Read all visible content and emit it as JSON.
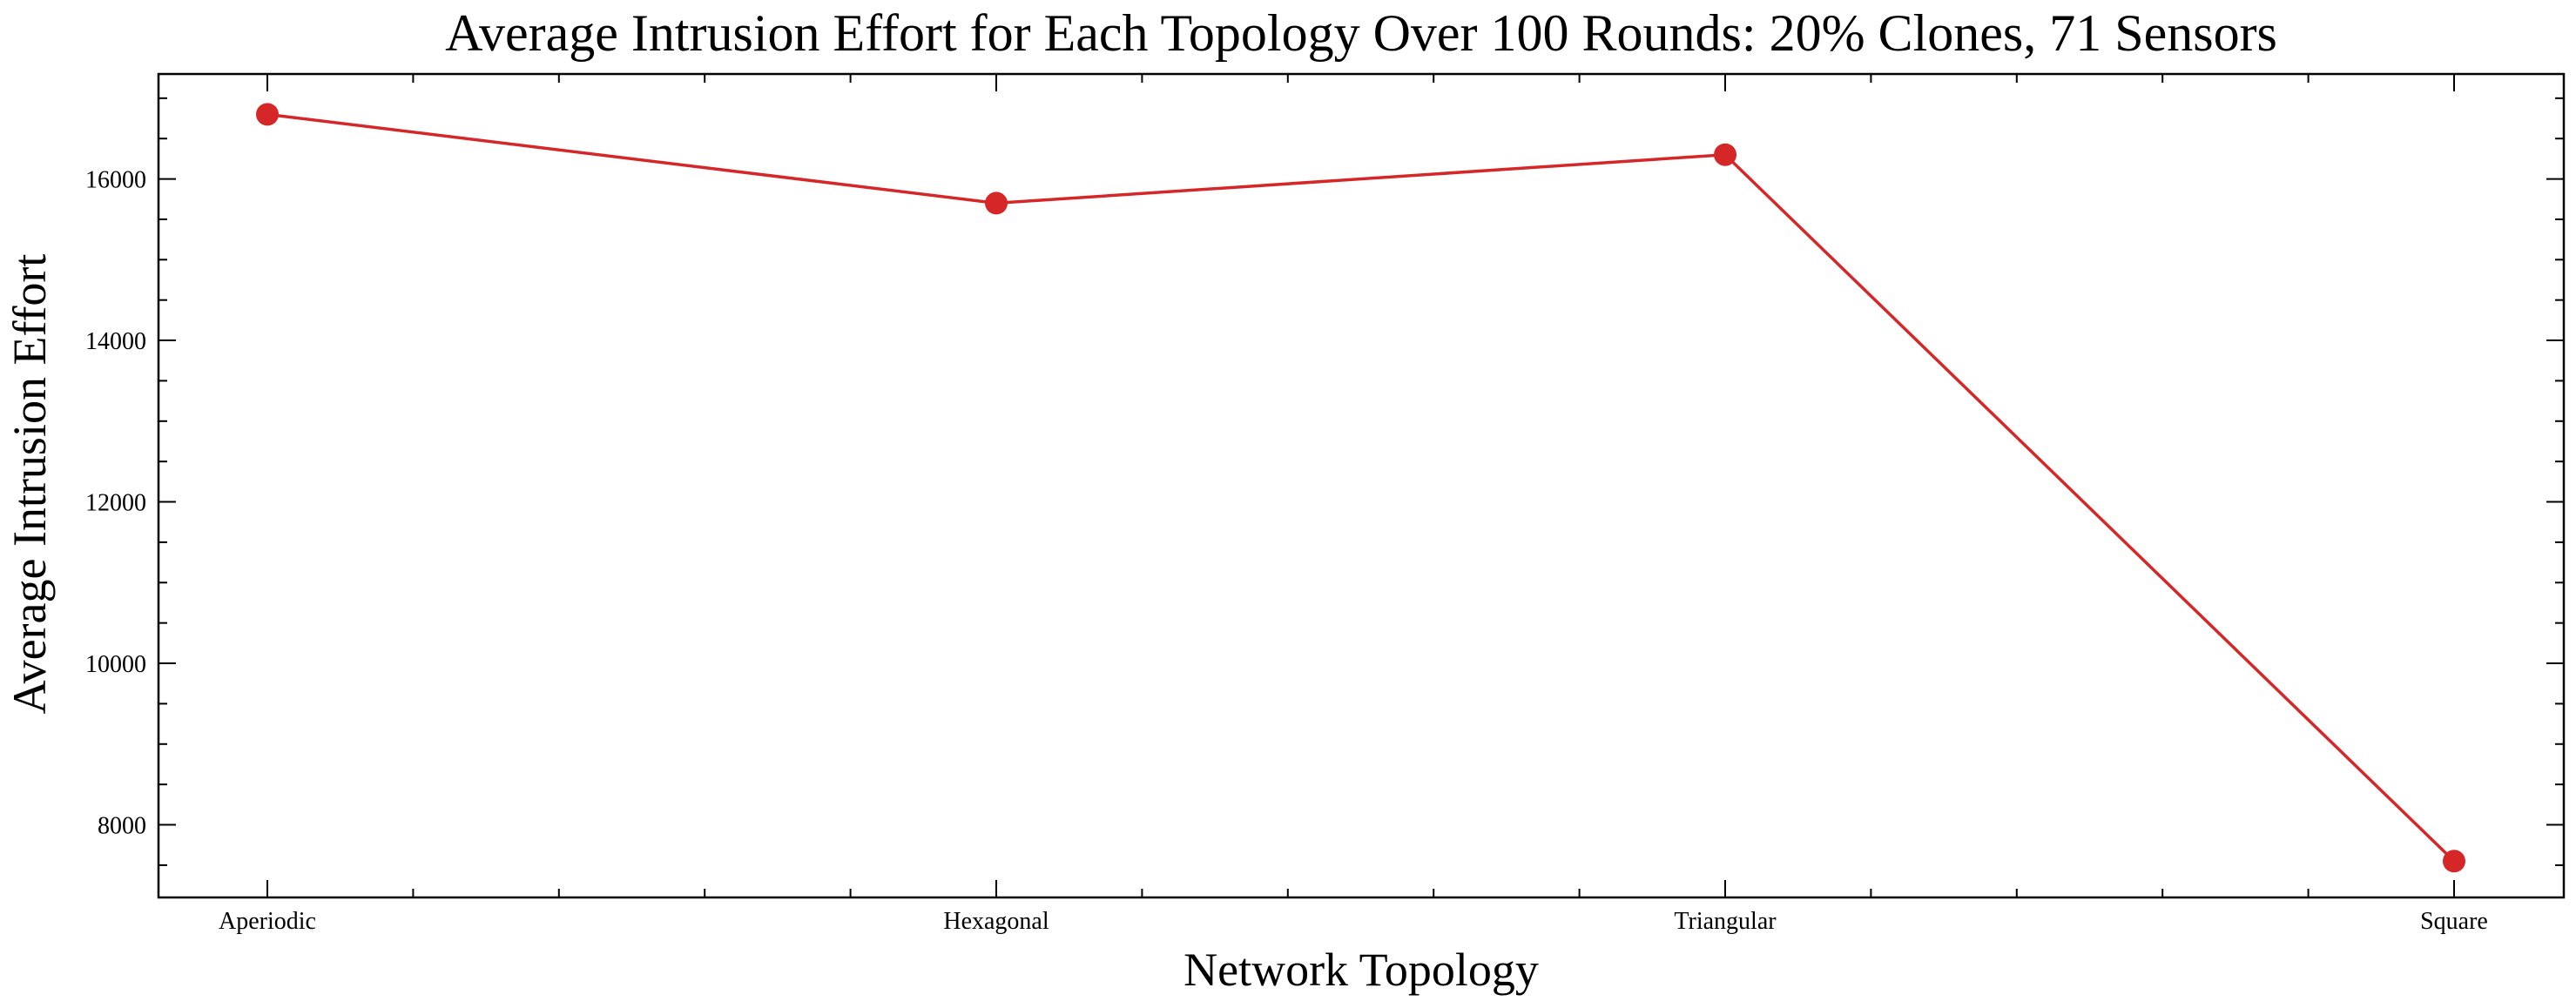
{
  "chart_data": {
    "type": "line",
    "title": "Average Intrusion Effort for Each Topology Over 100 Rounds: 20% Clones, 71 Sensors",
    "xlabel": "Network Topology",
    "ylabel": "Average Intrusion Effort",
    "categories": [
      "Aperiodic",
      "Hexagonal",
      "Triangular",
      "Square"
    ],
    "series": [
      {
        "values": [
          16800,
          15700,
          16300,
          7550
        ],
        "color": "#d62728"
      }
    ],
    "ylim": [
      7100,
      17300
    ],
    "yticks": [
      8000,
      10000,
      12000,
      14000,
      16000
    ],
    "ytick_labels": [
      "8000",
      "10000",
      "12000",
      "14000",
      "16000"
    ],
    "grid": false,
    "legend": "none"
  }
}
